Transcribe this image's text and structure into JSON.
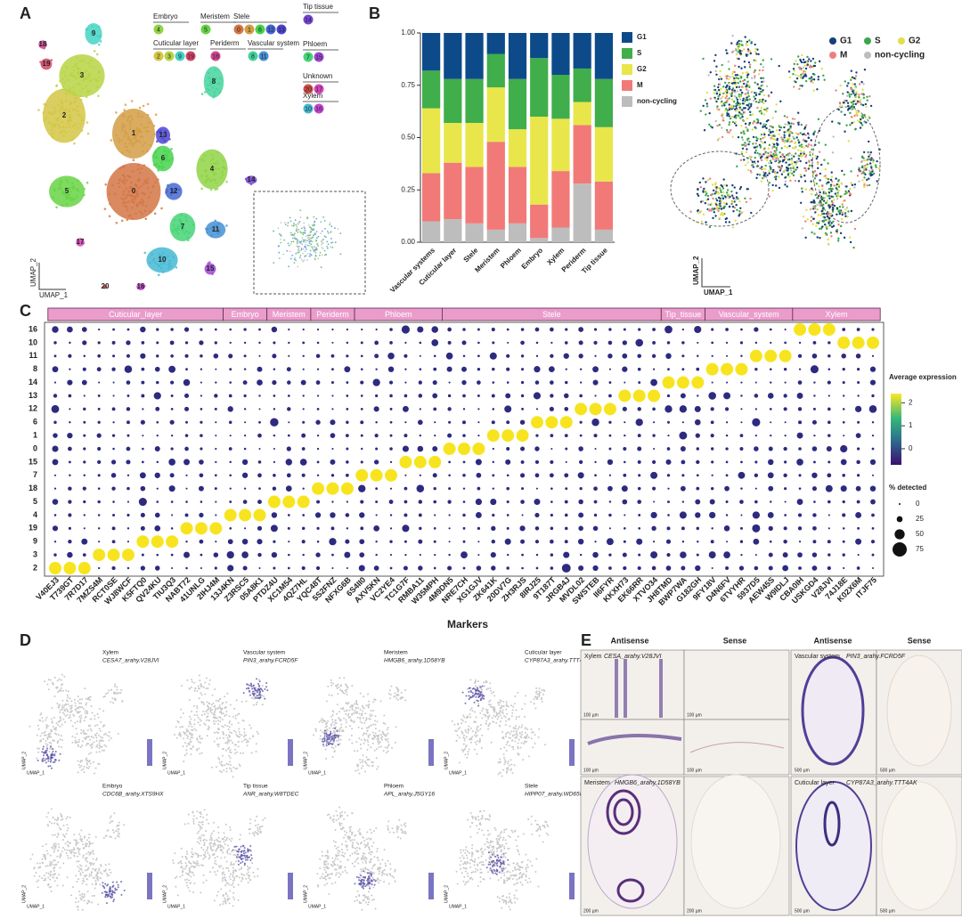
{
  "chart_data": [
    {
      "type": "umap",
      "label": "A",
      "clusters": [
        "0",
        "1",
        "2",
        "3",
        "4",
        "5",
        "6",
        "7",
        "8",
        "9",
        "10",
        "11",
        "12",
        "13",
        "14",
        "15",
        "16",
        "17",
        "18",
        "19",
        "20"
      ],
      "groups": [
        {
          "name": "Embryo",
          "clusters": [
            "4"
          ]
        },
        {
          "name": "Meristem",
          "clusters": [
            "5"
          ]
        },
        {
          "name": "Stele",
          "clusters": [
            "0",
            "1",
            "6",
            "12",
            "13"
          ]
        },
        {
          "name": "Tip tissue",
          "clusters": [
            "14"
          ]
        },
        {
          "name": "Cuticular layer",
          "clusters": [
            "2",
            "3",
            "9",
            "19"
          ]
        },
        {
          "name": "Periderm",
          "clusters": [
            "18"
          ]
        },
        {
          "name": "Vascular system",
          "clusters": [
            "8",
            "11"
          ]
        },
        {
          "name": "Phloem",
          "clusters": [
            "7",
            "15"
          ]
        },
        {
          "name": "Unknown",
          "clusters": [
            "20",
            "17"
          ]
        },
        {
          "name": "Xylem",
          "clusters": [
            "10",
            "16"
          ]
        }
      ],
      "xlabel": "UMAP_1",
      "ylabel": "UMAP_2"
    },
    {
      "type": "stacked_bar",
      "label": "B",
      "categories": [
        "Vascular systems",
        "Cuticular layer",
        "Stele",
        "Meristem",
        "Phloem",
        "Embryo",
        "Xylem",
        "Periderm",
        "Tip tissue"
      ],
      "series": [
        {
          "name": "G1",
          "color": "#0d4a8a",
          "values": [
            0.18,
            0.22,
            0.22,
            0.1,
            0.22,
            0.12,
            0.2,
            0.17,
            0.22
          ]
        },
        {
          "name": "S",
          "color": "#3fae4b",
          "values": [
            0.18,
            0.21,
            0.21,
            0.16,
            0.24,
            0.28,
            0.21,
            0.16,
            0.23
          ]
        },
        {
          "name": "G2",
          "color": "#e8e64a",
          "values": [
            0.31,
            0.19,
            0.21,
            0.26,
            0.18,
            0.42,
            0.25,
            0.11,
            0.26
          ]
        },
        {
          "name": "M",
          "color": "#f17a78",
          "values": [
            0.23,
            0.27,
            0.27,
            0.42,
            0.27,
            0.16,
            0.27,
            0.28,
            0.23
          ]
        },
        {
          "name": "non-cycling",
          "color": "#bdbdbd",
          "values": [
            0.1,
            0.11,
            0.09,
            0.06,
            0.09,
            0.02,
            0.07,
            0.28,
            0.06
          ]
        }
      ],
      "ylim": [
        0,
        1
      ],
      "yticks": [
        {
          "value": 0,
          "label": "0.00"
        },
        {
          "value": 0.25,
          "label": "0.25"
        },
        {
          "value": 0.5,
          "label": "0.50"
        },
        {
          "value": 0.75,
          "label": "0.75"
        },
        {
          "value": 1,
          "label": "1.00"
        }
      ]
    },
    {
      "type": "umap_phase",
      "series": [
        {
          "name": "G1",
          "color": "#163f7a"
        },
        {
          "name": "S",
          "color": "#3aa64a"
        },
        {
          "name": "G2",
          "color": "#e2df4a"
        },
        {
          "name": "M",
          "color": "#ef7f7f"
        },
        {
          "name": "non-cycling",
          "color": "#bdbdbd"
        }
      ],
      "xlabel": "UMAP_1",
      "ylabel": "UMAP_2"
    },
    {
      "type": "dotplot",
      "label": "C",
      "rows": [
        "16",
        "10",
        "11",
        "8",
        "14",
        "13",
        "12",
        "6",
        "1",
        "0",
        "15",
        "7",
        "18",
        "5",
        "4",
        "19",
        "9",
        "3",
        "2"
      ],
      "groups": [
        {
          "name": "Cuticular_layer",
          "markers": [
            "V40EJ3",
            "T739GT",
            "7R7D17",
            "7MZS4M",
            "RCT0SE",
            "WJ8WCF",
            "K5FTQ0",
            "QV24KU",
            "TIU3Q3",
            "NABT72",
            "41UNLG",
            "2IHJ4M"
          ],
          "top_cluster": [
            "2",
            "2",
            "2",
            "3",
            "3",
            "3",
            "9",
            "9",
            "9",
            "19",
            "19",
            "19"
          ]
        },
        {
          "name": "Embryo",
          "markers": [
            "13J4KN",
            "Z3RSC5",
            "05A8K1"
          ],
          "top_cluster": [
            "4",
            "4",
            "4"
          ]
        },
        {
          "name": "Meristem",
          "markers": [
            "PTDZ4U",
            "XC1M54",
            "4QZ7HL"
          ],
          "top_cluster": [
            "5",
            "5",
            "5"
          ]
        },
        {
          "name": "Periderm",
          "markers": [
            "YQC48T",
            "5S2FNZ",
            "NFXG6B"
          ],
          "top_cluster": [
            "18",
            "18",
            "18"
          ]
        },
        {
          "name": "Phloem",
          "markers": [
            "6S4II0",
            "AXV5KN",
            "VC2YE4",
            "TC1G7F",
            "RMBA11",
            "W35MPH"
          ],
          "top_cluster": [
            "7",
            "7",
            "7",
            "15",
            "15",
            "15"
          ]
        },
        {
          "name": "Stele",
          "markers": [
            "4M9DN5",
            "NRE7CH",
            "XG1GJV",
            "ZK641K",
            "20DV7G",
            "ZH3RJS",
            "8IRJ25",
            "9T187T",
            "JRGB4J",
            "MVDL02",
            "SWSTEB",
            "II6FYR",
            "KKXH73",
            "EK66RR",
            "XTVO34"
          ],
          "top_cluster": [
            "0",
            "0",
            "0",
            "1",
            "1",
            "1",
            "6",
            "6",
            "6",
            "12",
            "12",
            "12",
            "13",
            "13",
            "13"
          ]
        },
        {
          "name": "Tip_tissue",
          "markers": [
            "JH8TMD",
            "BWP7WA",
            "G182GH"
          ],
          "top_cluster": [
            "14",
            "14",
            "14"
          ]
        },
        {
          "name": "Vascular_system",
          "markers": [
            "9FY18V",
            "D4N6FV",
            "6TVYHR",
            "5937D5",
            "AEW45S",
            "W9IDLJ"
          ],
          "top_cluster": [
            "8",
            "8",
            "8",
            "11",
            "11",
            "11"
          ]
        },
        {
          "name": "Xylem",
          "markers": [
            "CBA0IH",
            "USKGD4",
            "V28JVI",
            "74J18E",
            "K02X6M",
            "ITJF75"
          ],
          "top_cluster": [
            "16",
            "16",
            "16",
            "10",
            "10",
            "10"
          ]
        }
      ],
      "xlabel": "Markers",
      "color_title": "Average expression",
      "clim": [
        -0.7,
        2.4
      ],
      "cticks": [
        0,
        1,
        2
      ],
      "size_title": "% detected",
      "slim": [
        0,
        75
      ],
      "sticks": [
        0,
        25,
        50,
        75
      ]
    },
    {
      "type": "feature_plots",
      "label": "D",
      "panels": [
        {
          "tissue": "Xylem",
          "gene": "CESA7_arahy.V28JVI"
        },
        {
          "tissue": "Vascular system",
          "gene": "PIN3_arahy.FCRD5F"
        },
        {
          "tissue": "Meristem",
          "gene": "HMGB6_arahy.1D58YB"
        },
        {
          "tissue": "Cuticular layer",
          "gene": "CYP87A3_arahy.TTT4AK"
        },
        {
          "tissue": "Embryo",
          "gene": "CDC6B_arahy.XTS9HX"
        },
        {
          "tissue": "Tip tissue",
          "gene": "ANR_arahy.W8TDEC"
        },
        {
          "tissue": "Phloem",
          "gene": "APL_arahy.J5GY16"
        },
        {
          "tissue": "Stele",
          "gene": "HIPP07_arahy.WD65KS"
        }
      ],
      "xlabel": "UMAP_1",
      "ylabel": "UMAP_2"
    },
    {
      "type": "ish",
      "label": "E",
      "headers": [
        "Antisense",
        "Sense",
        "Antisense",
        "Sense"
      ],
      "panels": [
        {
          "tissue": "Xylem",
          "gene": "CESA_arahy.V28JVI",
          "scale": "100 µm"
        },
        {
          "tissue": "Vascular system",
          "gene": "PIN3_arahy.FCRD5F",
          "scale": "500 µm"
        },
        {
          "tissue": "Meristem",
          "gene": "HMGB6_arahy.1D58YB",
          "scale": "200 µm"
        },
        {
          "tissue": "Cuticular layer",
          "gene": "CYP87A3_arahy.TTT4AK",
          "scale": "500 µm"
        }
      ]
    }
  ]
}
